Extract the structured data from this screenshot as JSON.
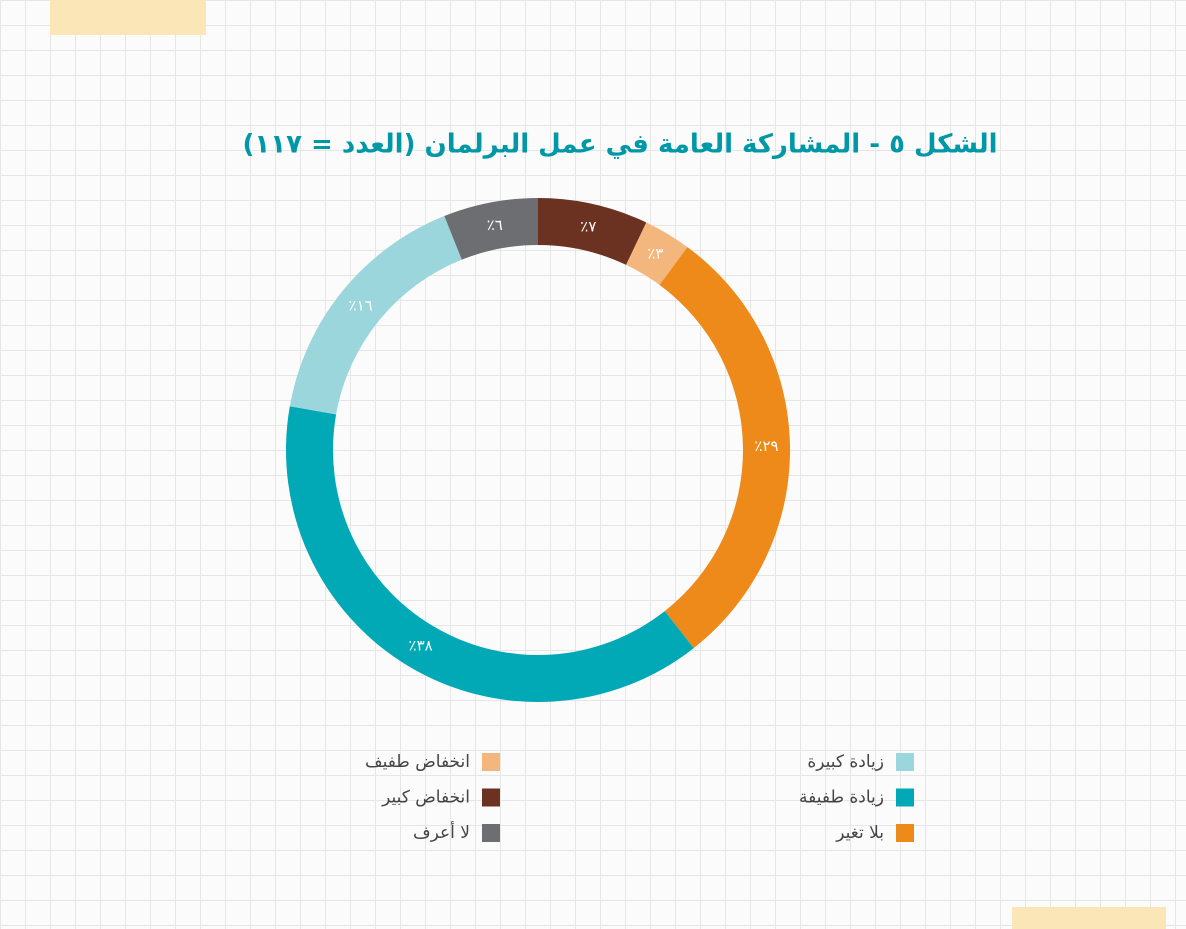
{
  "chart_data": {
    "type": "donut",
    "title": "الشكل ٥ - المشاركة العامة في عمل البرلمان (العدد = ١١٧)",
    "categories": [
      "انخفاض كبير",
      "انخفاض طفيف",
      "بلا تغير",
      "زيادة طفيفة",
      "زيادة كبيرة",
      "لا أعرف"
    ],
    "values": [
      7,
      3,
      29,
      38,
      16,
      6
    ],
    "value_labels": [
      "٪٧",
      "٪٣",
      "٪٢٩",
      "٪٣٨",
      "٪١٦",
      "٪٦"
    ],
    "colors": [
      "#6b3222",
      "#f3b77e",
      "#ee8a1a",
      "#00a9b5",
      "#9ad6dc",
      "#6d6e71"
    ]
  }
}
